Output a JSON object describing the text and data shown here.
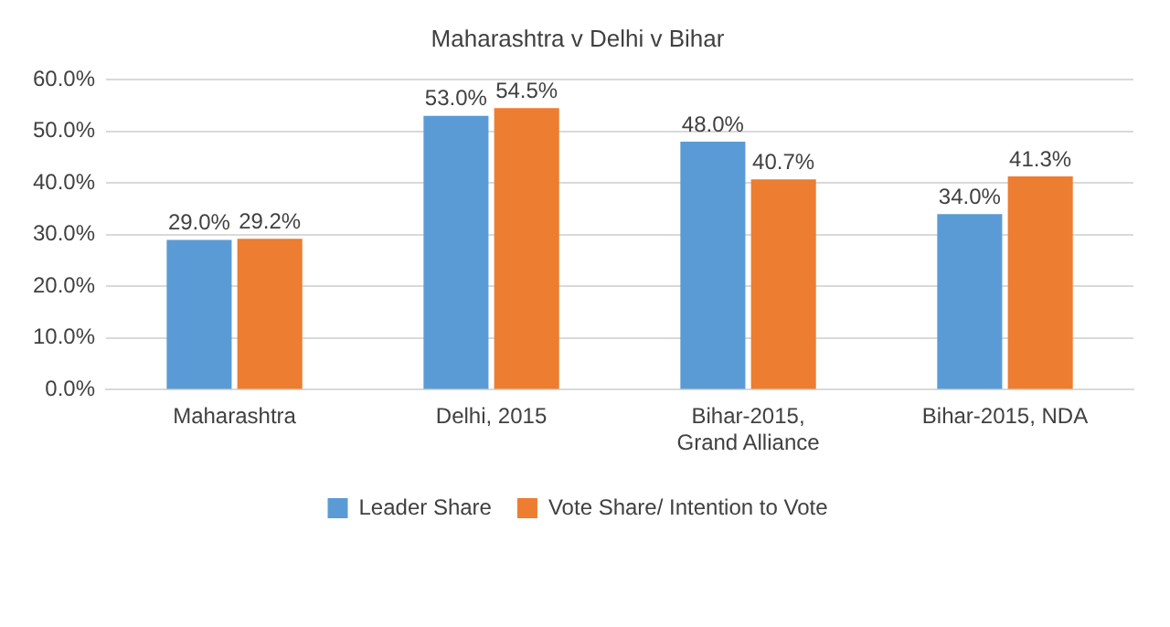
{
  "chart_data": {
    "type": "bar",
    "title": "Maharashtra v Delhi v Bihar",
    "categories": [
      "Maharashtra",
      "Delhi, 2015",
      "Bihar-2015, Grand Alliance",
      "Bihar-2015, NDA"
    ],
    "series": [
      {
        "name": "Leader Share",
        "color": "#5b9bd5",
        "values": [
          29.0,
          53.0,
          48.0,
          34.0
        ],
        "value_labels": [
          "29.0%",
          "53.0%",
          "48.0%",
          "34.0%"
        ]
      },
      {
        "name": "Vote Share/ Intention to Vote",
        "color": "#ed7d31",
        "values": [
          29.2,
          54.5,
          40.7,
          41.3
        ],
        "value_labels": [
          "29.2%",
          "54.5%",
          "40.7%",
          "41.3%"
        ]
      }
    ],
    "ylim": [
      0,
      60
    ],
    "yticks": [
      {
        "value": 0,
        "label": "0.0%"
      },
      {
        "value": 10,
        "label": "10.0%"
      },
      {
        "value": 20,
        "label": "20.0%"
      },
      {
        "value": 30,
        "label": "30.0%"
      },
      {
        "value": 40,
        "label": "40.0%"
      },
      {
        "value": 50,
        "label": "50.0%"
      },
      {
        "value": 60,
        "label": "60.0%"
      }
    ],
    "grid": "y",
    "legend": "bottom"
  }
}
